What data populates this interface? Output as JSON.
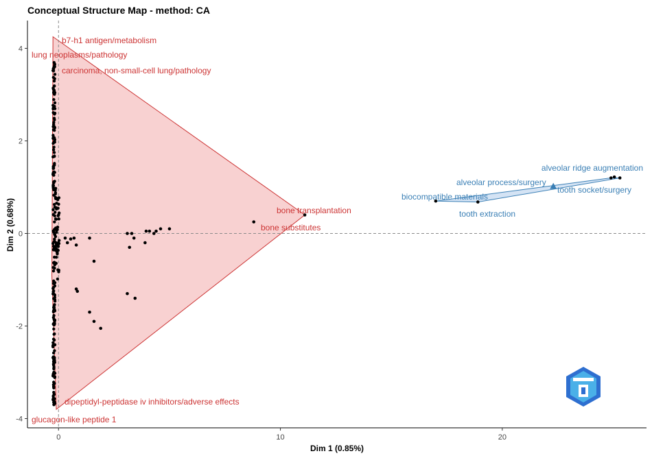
{
  "chart_data": {
    "type": "scatter",
    "title": "Conceptual Structure Map - method: CA",
    "xlabel": "Dim 1 (0.85%)",
    "ylabel": "Dim 2 (0.68%)",
    "xlim": [
      -1.4,
      26.5
    ],
    "ylim": [
      -4.2,
      4.6
    ],
    "x_ticks": [
      0,
      10,
      20
    ],
    "y_ticks": [
      -4,
      -2,
      0,
      2,
      4
    ],
    "reference_lines": {
      "x": 0,
      "y": 0,
      "style": "dashed"
    },
    "grid": false,
    "colors": {
      "cluster1": "#cc3333",
      "cluster1_fill": "#f7c9c9",
      "cluster2": "#3a7fb5",
      "cluster2_fill": "#cfe0f3",
      "points": "#000000",
      "logo": "#2e6fd0"
    },
    "clusters": [
      {
        "id": 1,
        "hull": [
          [
            -0.25,
            4.25
          ],
          [
            11.1,
            0.4
          ],
          [
            -0.1,
            -3.8
          ],
          [
            -0.3,
            -0.9
          ]
        ],
        "labels": [
          {
            "text": "b7-h1 antigen/metabolism",
            "x": -0.25,
            "y": 4.25
          },
          {
            "text": "lung neoplasms/pathology",
            "x": -0.2,
            "y": 3.95
          },
          {
            "text": "carcinoma, non-small-cell lung/pathology",
            "x": -0.15,
            "y": 3.75
          },
          {
            "text": "bone transplantation",
            "x": 11.1,
            "y": 0.4
          },
          {
            "text": "bone substitutes",
            "x": 8.8,
            "y": 0.25
          },
          {
            "text": "dipeptidyl-peptidase iv inhibitors/adverse effects",
            "x": -0.1,
            "y": -3.65
          },
          {
            "text": "glucagon-like peptide 1",
            "x": -0.1,
            "y": -3.8
          }
        ]
      },
      {
        "id": 2,
        "hull": [
          [
            17.0,
            0.7
          ],
          [
            24.9,
            1.2
          ],
          [
            25.3,
            1.2
          ],
          [
            18.9,
            0.68
          ]
        ],
        "centroid": [
          22.3,
          1.02
        ],
        "labels": [
          {
            "text": "alveolar ridge augmentation",
            "x": 25.3,
            "y": 1.2
          },
          {
            "text": "alveolar process/surgery",
            "x": 24.9,
            "y": 1.18
          },
          {
            "text": "tooth socket/surgery",
            "x": 25.1,
            "y": 1.2
          },
          {
            "text": "biocompatible materials",
            "x": 17.0,
            "y": 0.7
          },
          {
            "text": "tooth extraction",
            "x": 18.9,
            "y": 0.68
          }
        ]
      }
    ],
    "extra_points": [
      [
        0.3,
        -0.1
      ],
      [
        0.4,
        -0.2
      ],
      [
        0.55,
        -0.12
      ],
      [
        0.7,
        -0.1
      ],
      [
        0.8,
        -0.25
      ],
      [
        1.4,
        -0.1
      ],
      [
        1.6,
        -0.6
      ],
      [
        3.1,
        0.0
      ],
      [
        3.3,
        0.0
      ],
      [
        3.4,
        -0.1
      ],
      [
        3.2,
        -0.3
      ],
      [
        3.9,
        -0.2
      ],
      [
        3.95,
        0.05
      ],
      [
        4.1,
        0.05
      ],
      [
        4.3,
        0.0
      ],
      [
        4.4,
        0.05
      ],
      [
        4.6,
        0.1
      ],
      [
        5.0,
        0.1
      ],
      [
        8.8,
        0.25
      ],
      [
        11.1,
        0.4
      ],
      [
        0.8,
        -1.2
      ],
      [
        0.85,
        -1.25
      ],
      [
        3.1,
        -1.3
      ],
      [
        3.45,
        -1.4
      ],
      [
        1.4,
        -1.7
      ],
      [
        1.6,
        -1.9
      ],
      [
        1.9,
        -2.05
      ],
      [
        17.0,
        0.7
      ],
      [
        18.9,
        0.68
      ],
      [
        24.9,
        1.2
      ],
      [
        25.05,
        1.22
      ],
      [
        25.3,
        1.2
      ]
    ]
  }
}
